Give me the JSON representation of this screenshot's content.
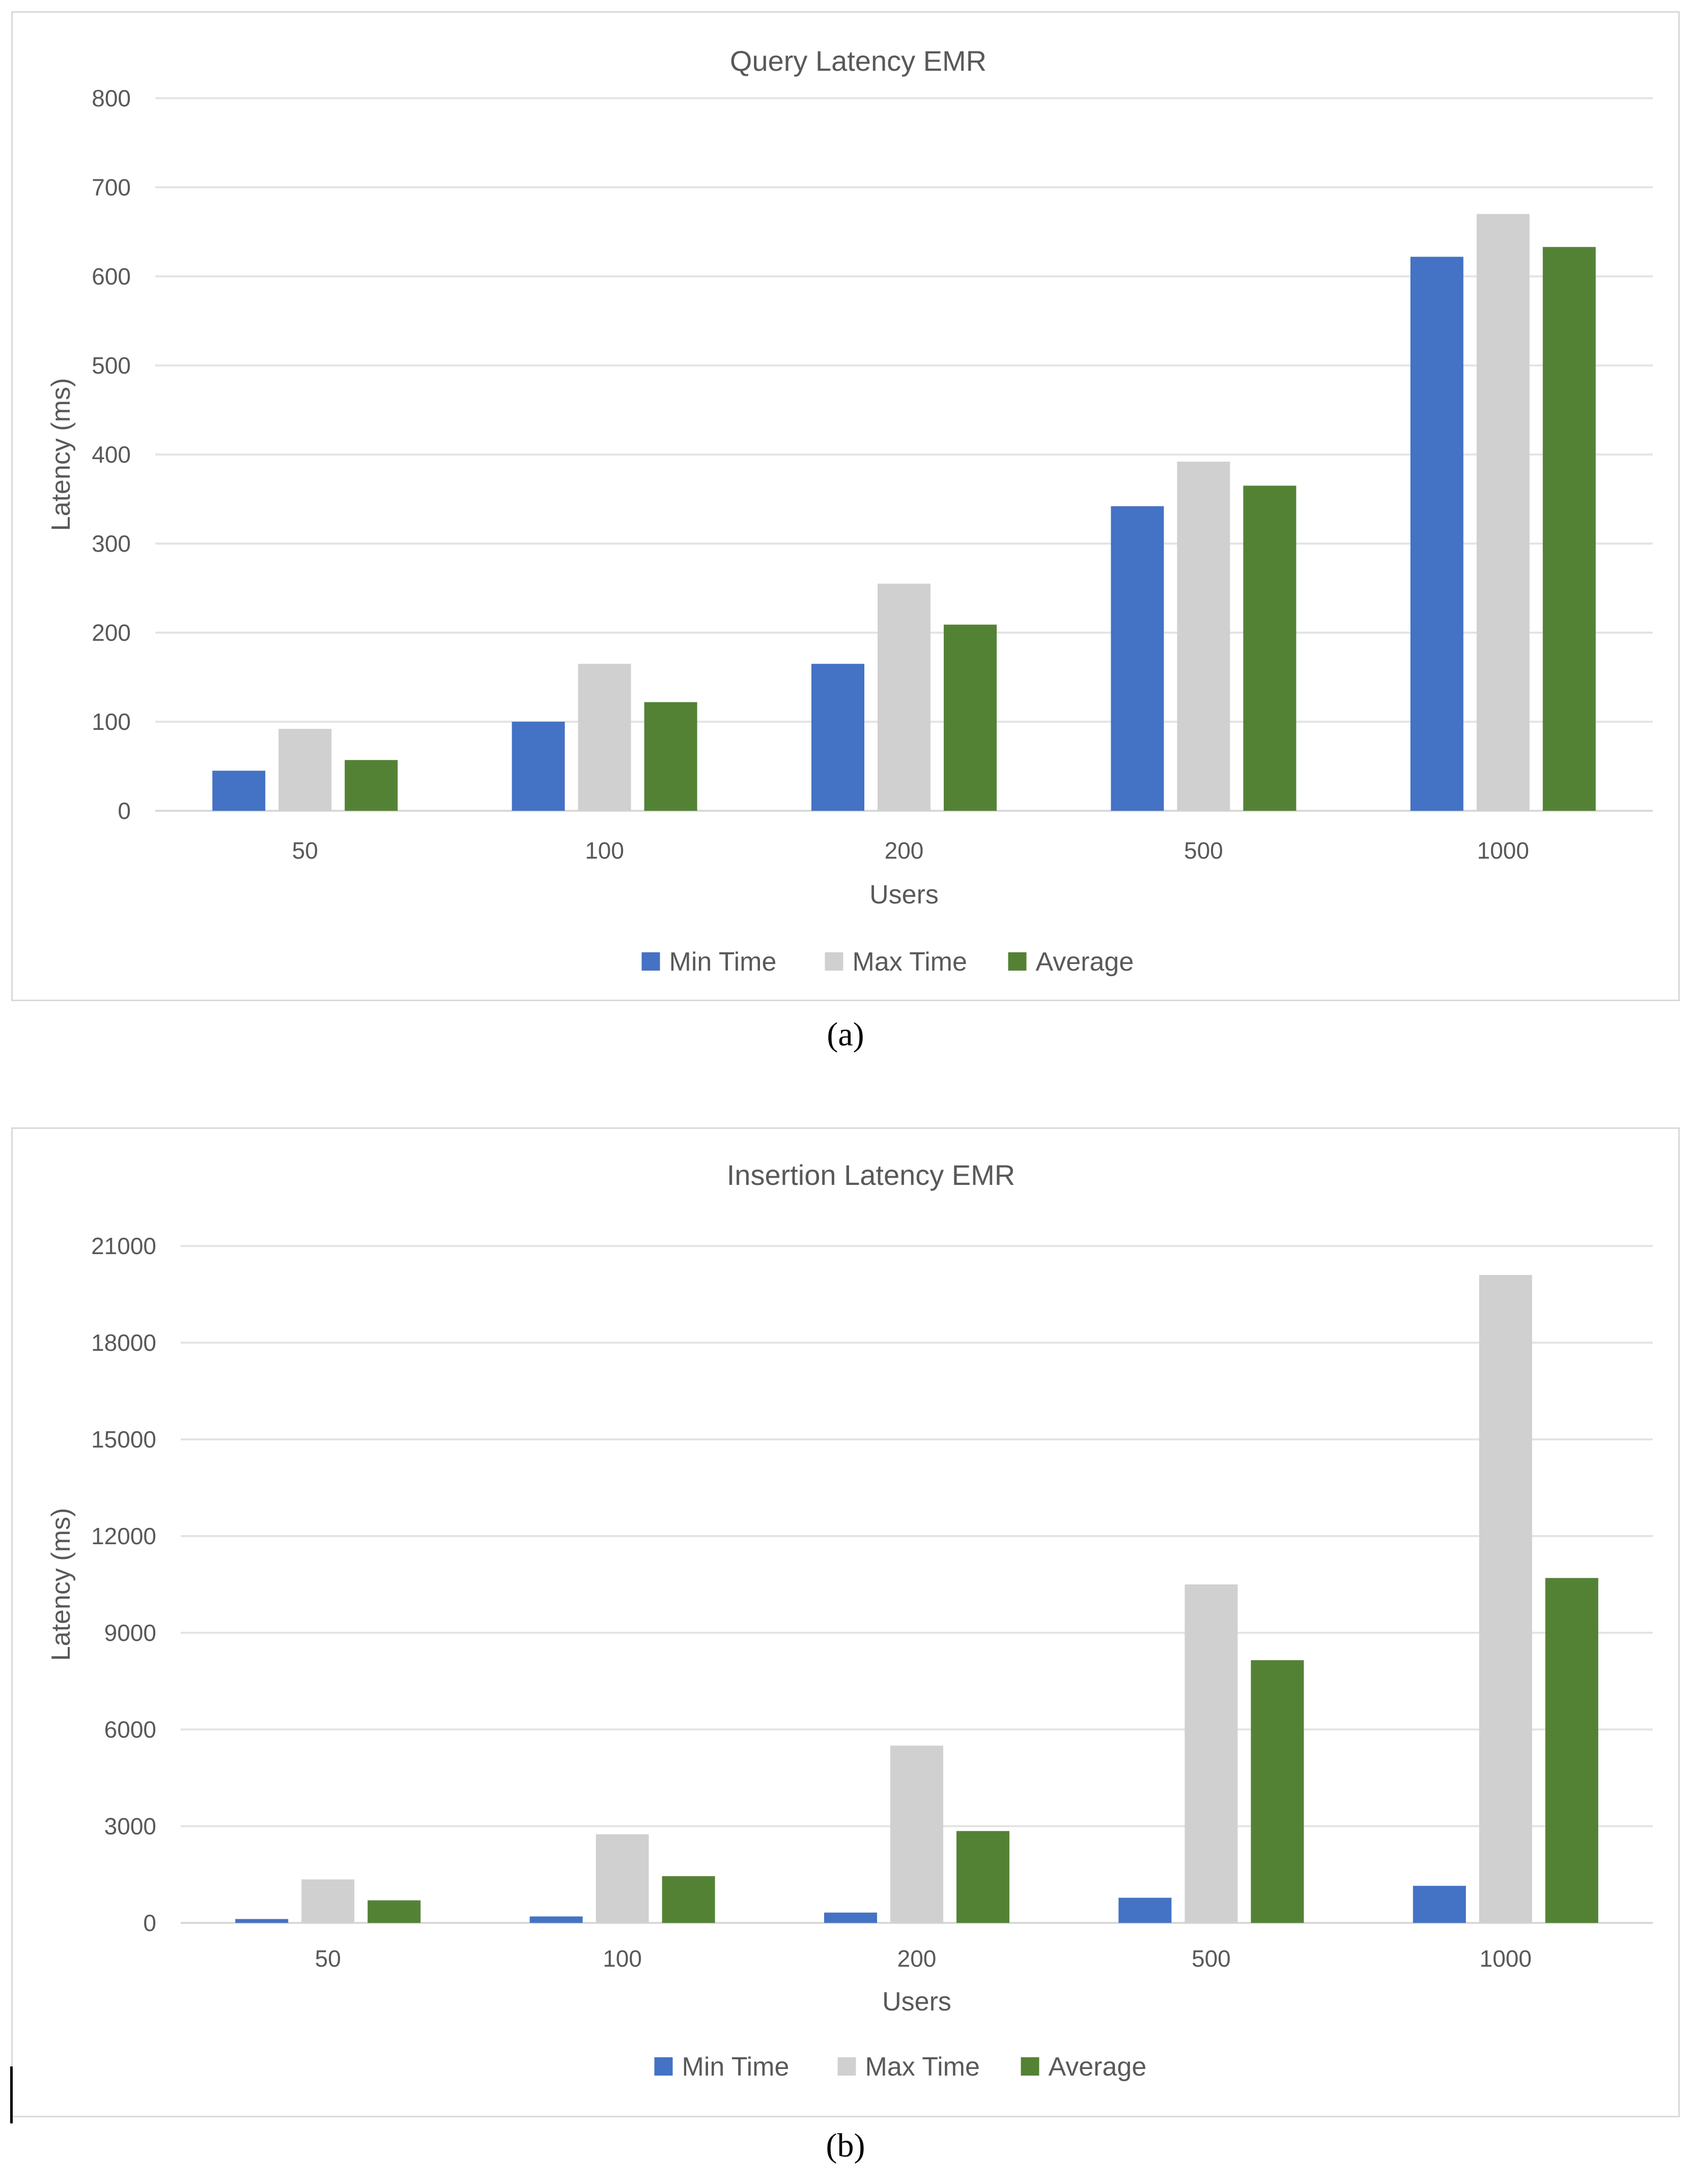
{
  "colors": {
    "min_time": "#4472c4",
    "max_time": "#d0d0d0",
    "average": "#548235",
    "gridline": "#e4e4e4",
    "axis_text": "#595959"
  },
  "captions": {
    "a": "(a)",
    "b": "(b)"
  },
  "chart_data": [
    {
      "type": "bar",
      "title": "Query Latency EMR",
      "xlabel": "Users",
      "ylabel": "Latency (ms)",
      "categories": [
        "50",
        "100",
        "200",
        "500",
        "1000"
      ],
      "ylim": [
        0,
        800
      ],
      "yticks": [
        0,
        100,
        200,
        300,
        400,
        500,
        600,
        700,
        800
      ],
      "grid": true,
      "legend": "bottom-center",
      "series": [
        {
          "name": "Min Time",
          "color": "#4472c4",
          "values": [
            45,
            100,
            165,
            342,
            622
          ]
        },
        {
          "name": "Max Time",
          "color": "#d0d0d0",
          "values": [
            92,
            165,
            255,
            392,
            670
          ]
        },
        {
          "name": "Average",
          "color": "#548235",
          "values": [
            57,
            122,
            209,
            365,
            633
          ]
        }
      ]
    },
    {
      "type": "bar",
      "title": "Insertion Latency EMR",
      "xlabel": "Users",
      "ylabel": "Latency (ms)",
      "categories": [
        "50",
        "100",
        "200",
        "500",
        "1000"
      ],
      "ylim": [
        0,
        21000
      ],
      "yticks": [
        0,
        3000,
        6000,
        9000,
        12000,
        15000,
        18000,
        21000
      ],
      "grid": true,
      "legend": "bottom-center",
      "series": [
        {
          "name": "Min Time",
          "color": "#4472c4",
          "values": [
            120,
            200,
            320,
            780,
            1150
          ]
        },
        {
          "name": "Max Time",
          "color": "#d0d0d0",
          "values": [
            1350,
            2750,
            5500,
            10500,
            20100
          ]
        },
        {
          "name": "Average",
          "color": "#548235",
          "values": [
            700,
            1450,
            2850,
            8150,
            10700
          ]
        }
      ]
    }
  ]
}
